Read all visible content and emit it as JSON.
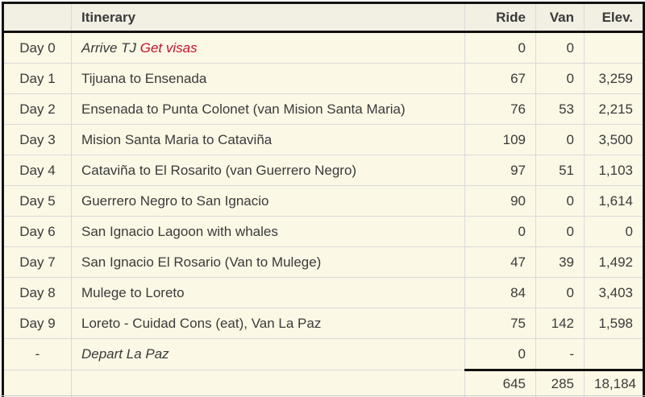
{
  "colors": {
    "cell_background": "#fcf8e6",
    "header_background": "#f2efe3",
    "grid_line": "#d9d9d9",
    "heavy_border": "#111111",
    "text": "#3a3a3a",
    "note_red": "#c1122f"
  },
  "table": {
    "headers": {
      "day": "",
      "itinerary": "Itinerary",
      "ride": "Ride",
      "van": "Van",
      "elev": "Elev."
    },
    "rows": [
      {
        "day": "Day 0",
        "itinerary": "Arrive TJ ",
        "note": "Get visas",
        "ride": "0",
        "van": "0",
        "elev": ""
      },
      {
        "day": "Day 1",
        "itinerary": "Tijuana to Ensenada",
        "note": "",
        "ride": "67",
        "van": "0",
        "elev": "3,259"
      },
      {
        "day": "Day 2",
        "itinerary": "Ensenada to Punta Colonet (van Mision Santa Maria)",
        "note": "",
        "ride": "76",
        "van": "53",
        "elev": "2,215"
      },
      {
        "day": "Day 3",
        "itinerary": "Mision Santa Maria to Cataviña",
        "note": "",
        "ride": "109",
        "van": "0",
        "elev": "3,500"
      },
      {
        "day": "Day 4",
        "itinerary": "Cataviña to El Rosarito (van Guerrero Negro)",
        "note": "",
        "ride": "97",
        "van": "51",
        "elev": "1,103"
      },
      {
        "day": "Day 5",
        "itinerary": "Guerrero Negro to San Ignacio",
        "note": "",
        "ride": "90",
        "van": "0",
        "elev": "1,614"
      },
      {
        "day": "Day 6",
        "itinerary": "San Ignacio Lagoon with whales",
        "note": "",
        "ride": "0",
        "van": "0",
        "elev": "0"
      },
      {
        "day": "Day 7",
        "itinerary": "San Ignacio El Rosario (Van to Mulege)",
        "note": "",
        "ride": "47",
        "van": "39",
        "elev": "1,492"
      },
      {
        "day": "Day 8",
        "itinerary": "Mulege to Loreto",
        "note": "",
        "ride": "84",
        "van": "0",
        "elev": "3,403"
      },
      {
        "day": "Day 9",
        "itinerary": "Loreto - Cuidad Cons (eat), Van La Paz",
        "note": "",
        "ride": "75",
        "van": "142",
        "elev": "1,598"
      },
      {
        "day": "-",
        "itinerary": "Depart La Paz",
        "note": "",
        "ride": "0",
        "van": "-",
        "elev": ""
      }
    ],
    "totals": {
      "day": "",
      "itinerary": "",
      "ride": "645",
      "van": "285",
      "elev": "18,184"
    }
  },
  "chart_data": {
    "type": "table",
    "title": "Itinerary",
    "columns": [
      "",
      "Itinerary",
      "Ride",
      "Van",
      "Elev."
    ],
    "rows": [
      [
        "Day 0",
        "Arrive TJ Get visas",
        0,
        0,
        null
      ],
      [
        "Day 1",
        "Tijuana to Ensenada",
        67,
        0,
        3259
      ],
      [
        "Day 2",
        "Ensenada to Punta Colonet (van Mision Santa Maria)",
        76,
        53,
        2215
      ],
      [
        "Day 3",
        "Mision Santa Maria to Cataviña",
        109,
        0,
        3500
      ],
      [
        "Day 4",
        "Cataviña to El Rosarito (van Guerrero Negro)",
        97,
        51,
        1103
      ],
      [
        "Day 5",
        "Guerrero Negro to San Ignacio",
        90,
        0,
        1614
      ],
      [
        "Day 6",
        "San Ignacio Lagoon with whales",
        0,
        0,
        0
      ],
      [
        "Day 7",
        "San Ignacio El Rosario (Van to Mulege)",
        47,
        39,
        1492
      ],
      [
        "Day 8",
        "Mulege to Loreto",
        84,
        0,
        3403
      ],
      [
        "Day 9",
        "Loreto - Cuidad Cons (eat), Van La Paz",
        75,
        142,
        1598
      ],
      [
        "-",
        "Depart La Paz",
        0,
        "-",
        null
      ]
    ],
    "totals": {
      "ride": 645,
      "van": 285,
      "elev": 18184
    }
  }
}
